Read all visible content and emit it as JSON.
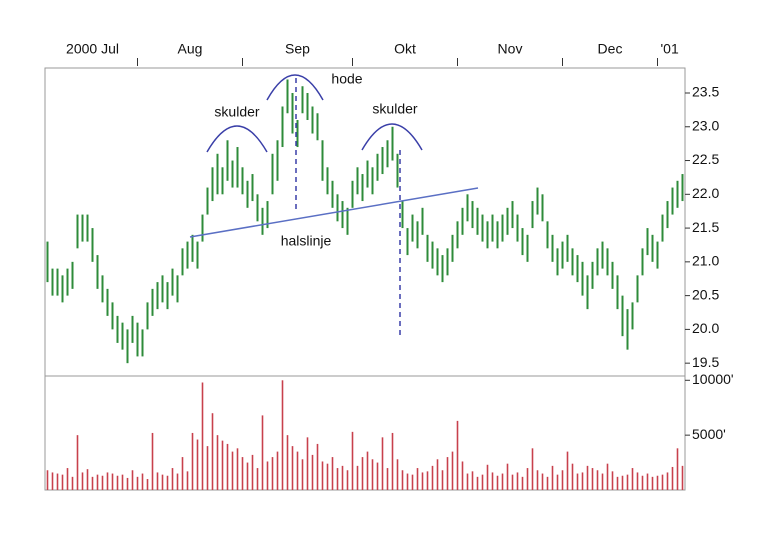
{
  "chart_data": {
    "type": "ohlc",
    "high": [
      21.3,
      20.9,
      20.9,
      20.8,
      20.9,
      21.0,
      21.7,
      21.7,
      21.7,
      21.5,
      21.1,
      20.8,
      20.6,
      20.4,
      20.2,
      20.1,
      20.0,
      20.2,
      20.1,
      20.0,
      20.4,
      20.6,
      20.7,
      20.8,
      20.7,
      20.9,
      20.8,
      21.2,
      21.3,
      21.4,
      21.3,
      21.7,
      22.1,
      22.4,
      22.6,
      22.4,
      22.8,
      22.5,
      22.7,
      22.4,
      22.2,
      22.3,
      22.0,
      21.8,
      21.9,
      22.6,
      22.8,
      23.3,
      23.7,
      23.5,
      23.1,
      23.6,
      23.5,
      23.3,
      23.2,
      22.8,
      22.4,
      22.2,
      22.0,
      21.9,
      21.8,
      22.2,
      22.4,
      22.3,
      22.5,
      22.4,
      22.6,
      22.7,
      22.8,
      23.0,
      22.6,
      21.9,
      21.5,
      21.7,
      21.6,
      21.8,
      21.4,
      21.3,
      21.2,
      21.1,
      21.2,
      21.4,
      21.6,
      21.8,
      22.0,
      21.9,
      21.8,
      21.7,
      21.6,
      21.7,
      21.6,
      21.7,
      21.8,
      21.9,
      21.7,
      21.5,
      21.4,
      21.9,
      22.1,
      22.0,
      21.6,
      21.4,
      21.2,
      21.3,
      21.4,
      21.2,
      21.1,
      21.0,
      20.8,
      21.0,
      21.2,
      21.3,
      21.2,
      21.0,
      20.8,
      20.5,
      20.3,
      20.4,
      20.8,
      21.2,
      21.5,
      21.4,
      21.3,
      21.7,
      21.9,
      22.1,
      22.2,
      22.3
    ],
    "low": [
      20.7,
      20.5,
      20.5,
      20.4,
      20.5,
      20.6,
      21.2,
      21.3,
      21.3,
      21.0,
      20.6,
      20.4,
      20.2,
      20.0,
      19.8,
      19.7,
      19.5,
      19.8,
      19.6,
      19.6,
      20.0,
      20.2,
      20.3,
      20.4,
      20.3,
      20.5,
      20.4,
      20.8,
      20.9,
      21.0,
      20.9,
      21.3,
      21.7,
      21.9,
      22.0,
      22.0,
      22.2,
      22.1,
      22.1,
      22.0,
      21.8,
      21.9,
      21.6,
      21.4,
      21.5,
      22.0,
      22.2,
      22.7,
      23.2,
      22.9,
      22.7,
      23.2,
      23.1,
      22.9,
      22.8,
      22.2,
      22.0,
      21.8,
      21.6,
      21.5,
      21.4,
      21.8,
      22.0,
      21.9,
      22.1,
      22.0,
      22.2,
      22.3,
      22.4,
      22.5,
      22.1,
      21.5,
      21.1,
      21.3,
      21.2,
      21.4,
      21.0,
      20.9,
      20.8,
      20.7,
      20.8,
      21.0,
      21.2,
      21.4,
      21.6,
      21.5,
      21.4,
      21.3,
      21.2,
      21.3,
      21.2,
      21.3,
      21.4,
      21.5,
      21.3,
      21.1,
      21.0,
      21.5,
      21.7,
      21.6,
      21.2,
      21.0,
      20.8,
      20.9,
      21.0,
      20.8,
      20.7,
      20.5,
      20.3,
      20.6,
      20.8,
      20.9,
      20.8,
      20.6,
      20.3,
      19.9,
      19.7,
      20.0,
      20.4,
      20.8,
      21.1,
      21.0,
      20.9,
      21.3,
      21.5,
      21.7,
      21.8,
      21.9
    ],
    "volume": [
      1800,
      1600,
      1500,
      1400,
      2000,
      1200,
      5000,
      1600,
      1900,
      1200,
      1400,
      1300,
      1600,
      1500,
      1300,
      1400,
      1100,
      1800,
      1200,
      1500,
      1000,
      5200,
      1600,
      1400,
      1300,
      2000,
      1500,
      3000,
      1700,
      5200,
      4600,
      9800,
      4000,
      7000,
      5000,
      4500,
      4200,
      3500,
      3800,
      3000,
      2500,
      3200,
      2000,
      6800,
      2600,
      3000,
      3500,
      10000,
      5000,
      4000,
      3500,
      2800,
      4800,
      3200,
      4200,
      2600,
      2400,
      3000,
      2000,
      2200,
      1800,
      5300,
      2200,
      3000,
      3500,
      2800,
      2500,
      4800,
      2000,
      5200,
      2800,
      1800,
      1500,
      1400,
      2000,
      1600,
      1700,
      2200,
      2800,
      1800,
      3000,
      3500,
      6300,
      2600,
      1500,
      1700,
      1200,
      1400,
      2300,
      1600,
      1300,
      1500,
      2400,
      1400,
      1600,
      1200,
      2000,
      3800,
      1800,
      1500,
      1200,
      2200,
      1400,
      1800,
      3500,
      2400,
      1500,
      1600,
      2200,
      2000,
      1800,
      1500,
      2400,
      1700,
      1200,
      1300,
      1400,
      2000,
      1600,
      1300,
      1500,
      1200,
      1300,
      1400,
      1600,
      2100,
      3800,
      2200
    ],
    "price_color": "#2e8b3a",
    "volume_color": "#c8404c",
    "xlim": [
      -0.5,
      127.5
    ],
    "xticks": [
      {
        "value": 0,
        "label": "2000 Jul"
      },
      {
        "value": 18,
        "label": "Aug"
      },
      {
        "value": 39,
        "label": "Sep"
      },
      {
        "value": 61,
        "label": "Okt"
      },
      {
        "value": 82,
        "label": "Nov"
      },
      {
        "value": 103,
        "label": "Dec"
      },
      {
        "value": 122,
        "label": "'01"
      }
    ],
    "ylim": [
      19.31,
      23.87
    ],
    "yticks": [
      23.5,
      {
        "value": 23,
        "label": "23.0"
      },
      22.5,
      {
        "value": 22,
        "label": "22.0"
      },
      21.5,
      {
        "value": 21,
        "label": "21.0"
      },
      20.5,
      {
        "value": 20,
        "label": "20.0"
      },
      19.5
    ],
    "y2lim": [
      0,
      10300
    ],
    "y2ticks": [
      {
        "value": 10000,
        "label": "10000'"
      },
      {
        "value": 5000,
        "label": "5000'"
      }
    ],
    "annotations": [
      "skulder",
      "hode",
      "skulder",
      "halslinje"
    ]
  }
}
